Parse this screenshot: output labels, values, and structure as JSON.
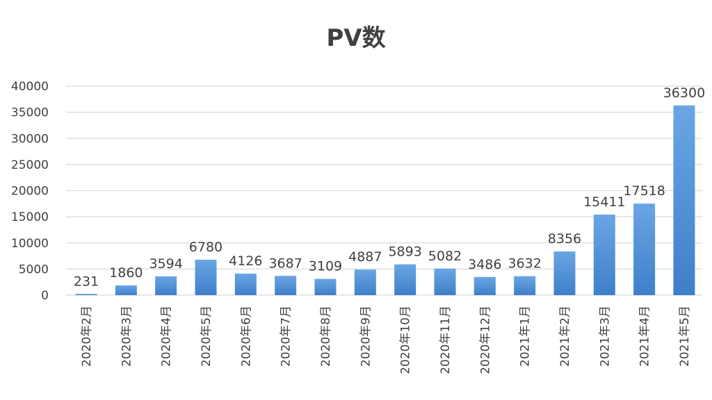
{
  "chart_data": {
    "type": "bar",
    "title": "PV数",
    "xlabel": "",
    "ylabel": "",
    "ylim": [
      0,
      40000
    ],
    "yticks": [
      0,
      5000,
      10000,
      15000,
      20000,
      25000,
      30000,
      35000,
      40000
    ],
    "grid": true,
    "legend": "none",
    "categories": [
      "2020年2月",
      "2020年3月",
      "2020年4月",
      "2020年5月",
      "2020年6月",
      "2020年7月",
      "2020年8月",
      "2020年9月",
      "2020年10月",
      "2020年11月",
      "2020年12月",
      "2021年1月",
      "2021年2月",
      "2021年3月",
      "2021年4月",
      "2021年5月"
    ],
    "values": [
      231,
      1860,
      3594,
      6780,
      4126,
      3687,
      3109,
      4887,
      5893,
      5082,
      3486,
      3632,
      8356,
      15411,
      17518,
      36300
    ],
    "bar_color": "#4f8fd6"
  }
}
